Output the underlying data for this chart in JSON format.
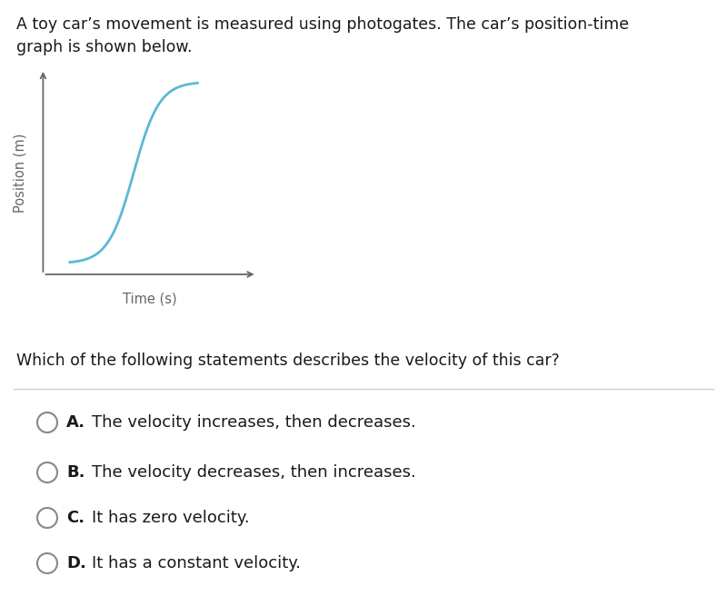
{
  "title_text": "A toy car’s movement is measured using photogates. The car’s position-time\ngraph is shown below.",
  "question_text": "Which of the following statements describes the velocity of this car?",
  "options": [
    {
      "label": "A.",
      "text": "  The velocity increases, then decreases."
    },
    {
      "label": "B.",
      "text": "  The velocity decreases, then increases."
    },
    {
      "label": "C.",
      "text": "  It has zero velocity."
    },
    {
      "label": "D.",
      "text": "  It has a constant velocity."
    }
  ],
  "xlabel": "Time (s)",
  "ylabel": "Position (m)",
  "curve_color": "#5bb8d4",
  "axis_color": "#666666",
  "bg_color": "#ffffff",
  "text_color": "#1a1a1a",
  "title_fontsize": 12.5,
  "question_fontsize": 12.5,
  "option_fontsize": 13,
  "axis_label_fontsize": 10.5,
  "circle_color": "#888888",
  "divider_color": "#cccccc"
}
